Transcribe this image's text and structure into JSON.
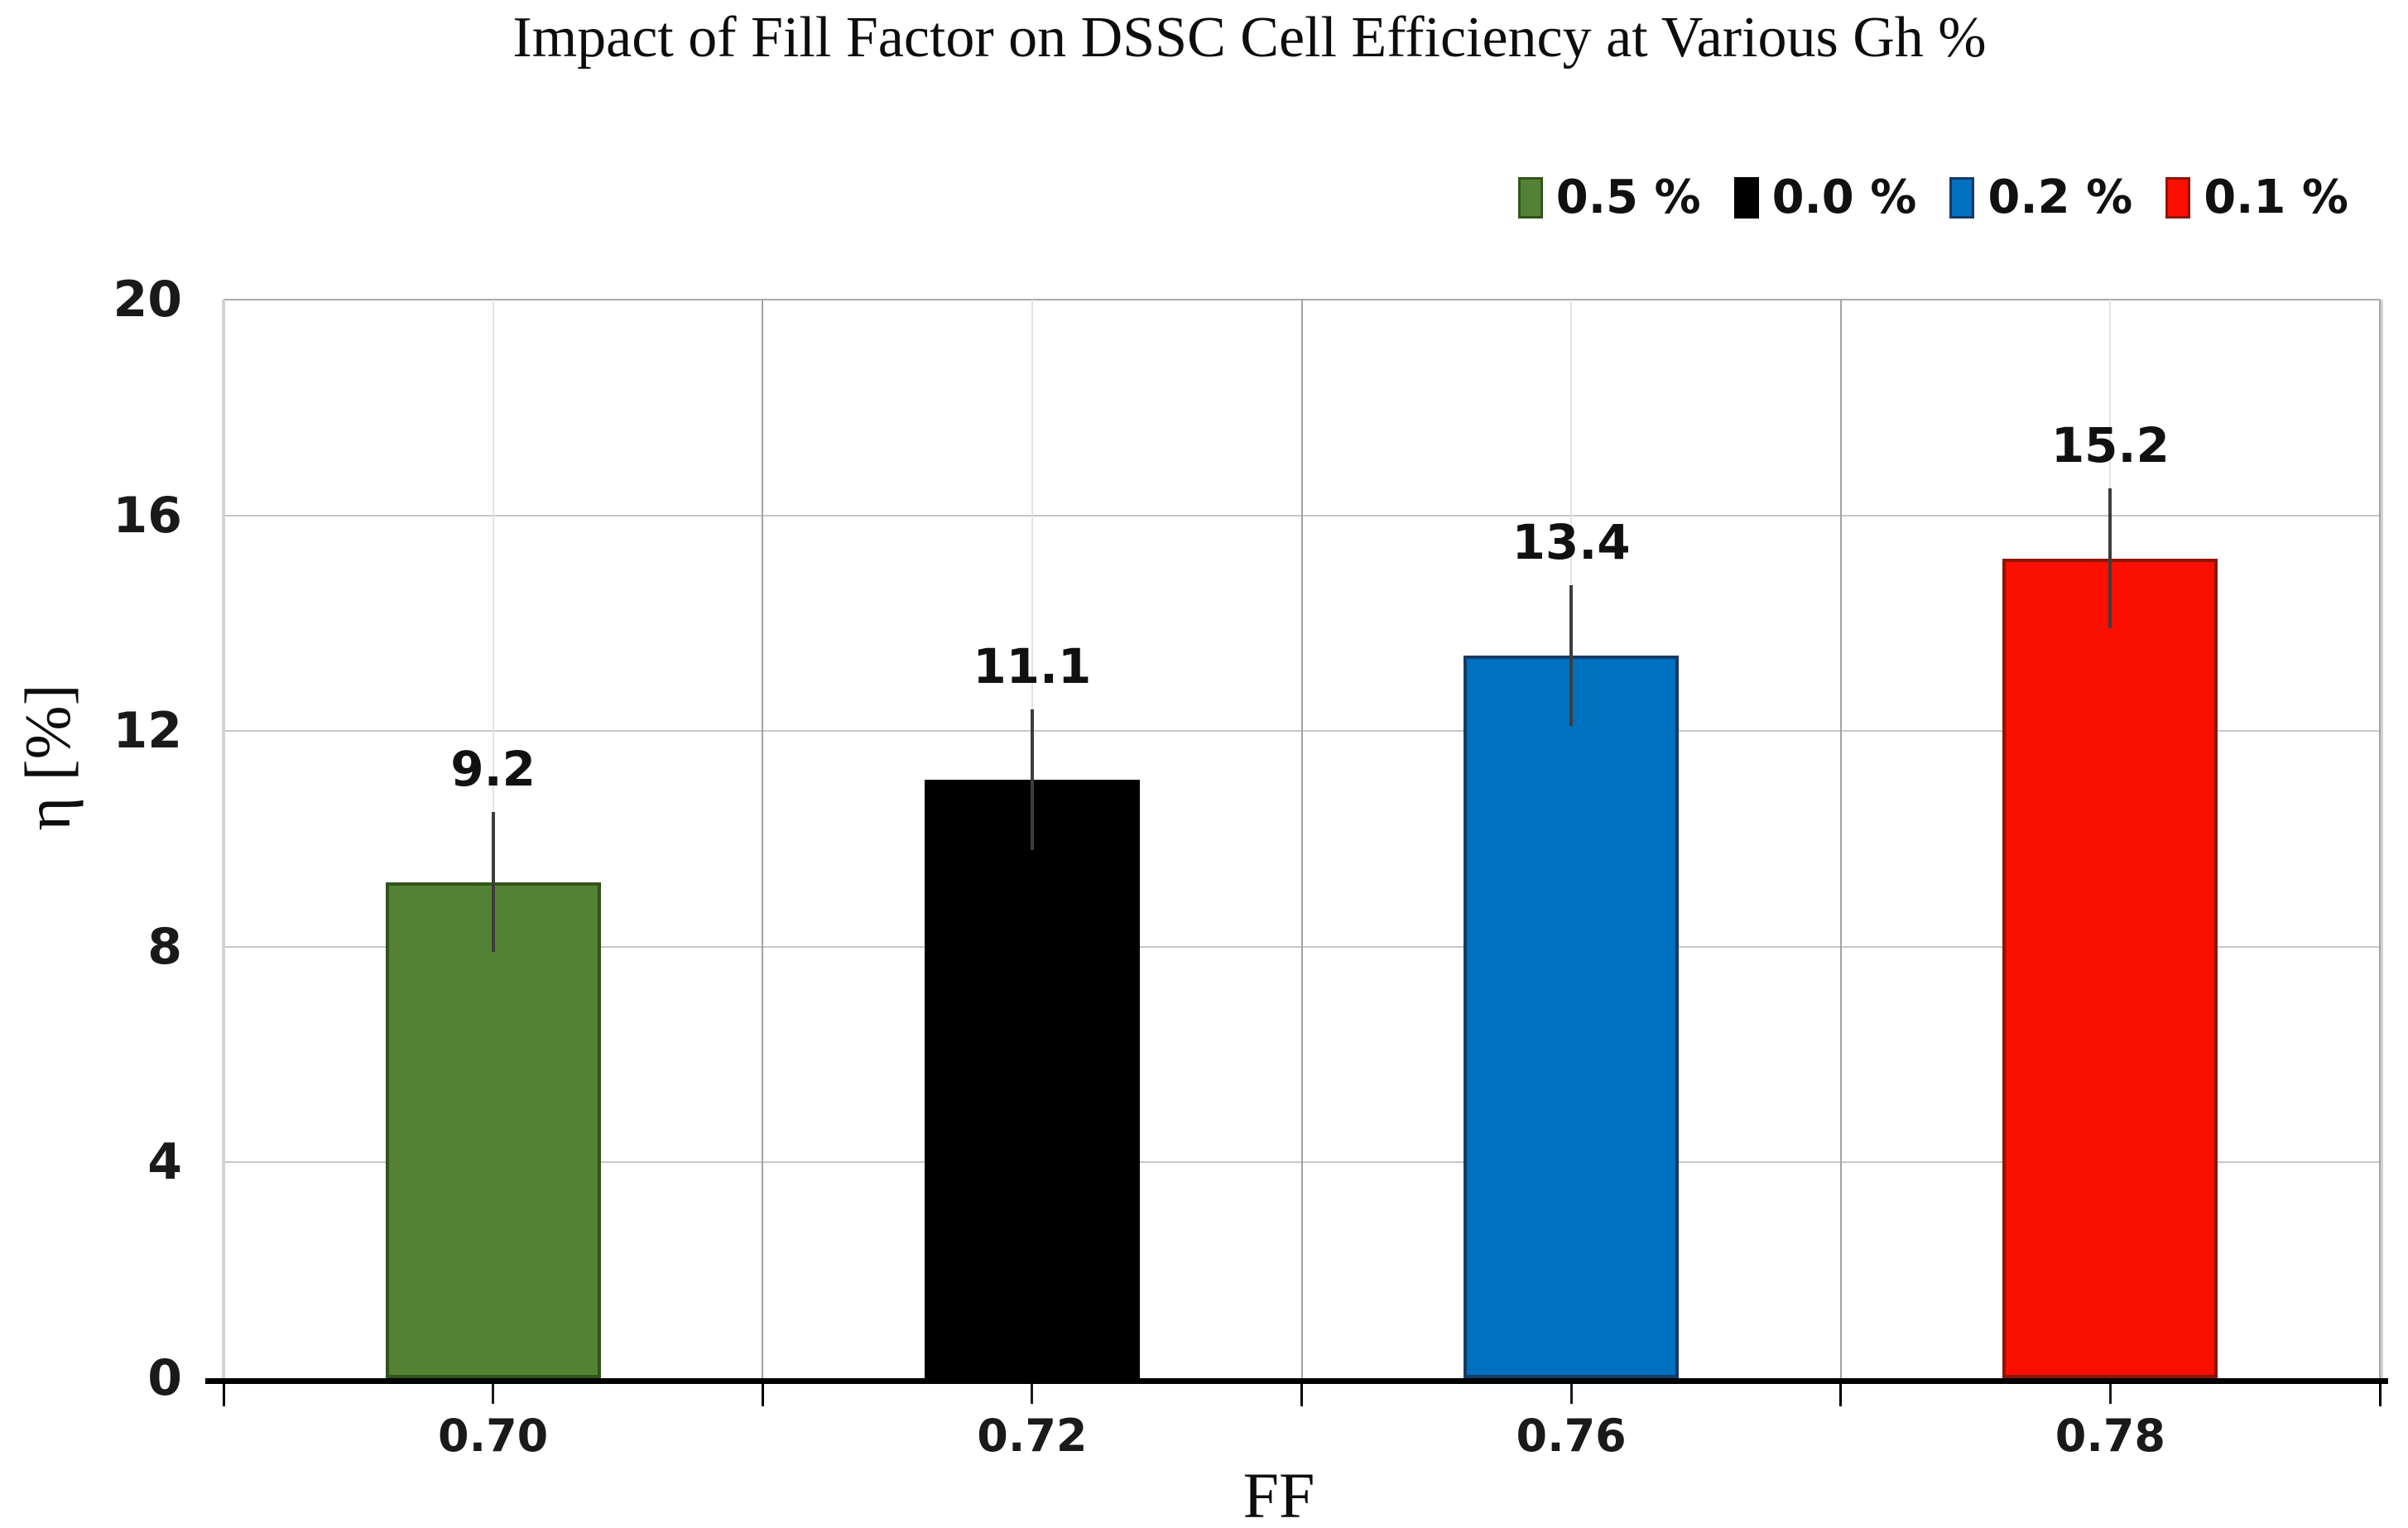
{
  "page": {
    "background": "#ffffff"
  },
  "chart_data": {
    "type": "bar",
    "title": "Impact of Fill Factor on DSSC Cell Efficiency at Various Gh %",
    "xlabel": "FF",
    "ylabel": "η [%]",
    "ylim": [
      0,
      20
    ],
    "y_ticks": [
      "0",
      "4",
      "8",
      "12",
      "16",
      "20"
    ],
    "grid": true,
    "legend_position": "top-right",
    "legend": [
      {
        "label": "0.5 %",
        "color": "#548235",
        "border_color": "#31541a"
      },
      {
        "label": "0.0 %",
        "color": "#000000",
        "border_color": "#000000"
      },
      {
        "label": "0.2 %",
        "color": "#0070c0",
        "border_color": "#173a66"
      },
      {
        "label": "0.1 %",
        "color": "#fa0f00",
        "border_color": "#8f1407"
      }
    ],
    "categories": [
      "0.70",
      "0.72",
      "0.76",
      "0.78"
    ],
    "bars": [
      {
        "category": "0.70",
        "series": "0.5 %",
        "value": 9.2,
        "label": "9.2",
        "error": 1.3,
        "color": "#548235",
        "border_color": "#31541a"
      },
      {
        "category": "0.72",
        "series": "0.0 %",
        "value": 11.1,
        "label": "11.1",
        "error": 1.3,
        "color": "#000000",
        "border_color": "#000000"
      },
      {
        "category": "0.76",
        "series": "0.2 %",
        "value": 13.4,
        "label": "13.4",
        "error": 1.3,
        "color": "#0070c0",
        "border_color": "#173a66"
      },
      {
        "category": "0.78",
        "series": "0.1 %",
        "value": 15.2,
        "label": "15.2",
        "error": 1.3,
        "color": "#fa0f00",
        "border_color": "#8f1407"
      }
    ]
  }
}
